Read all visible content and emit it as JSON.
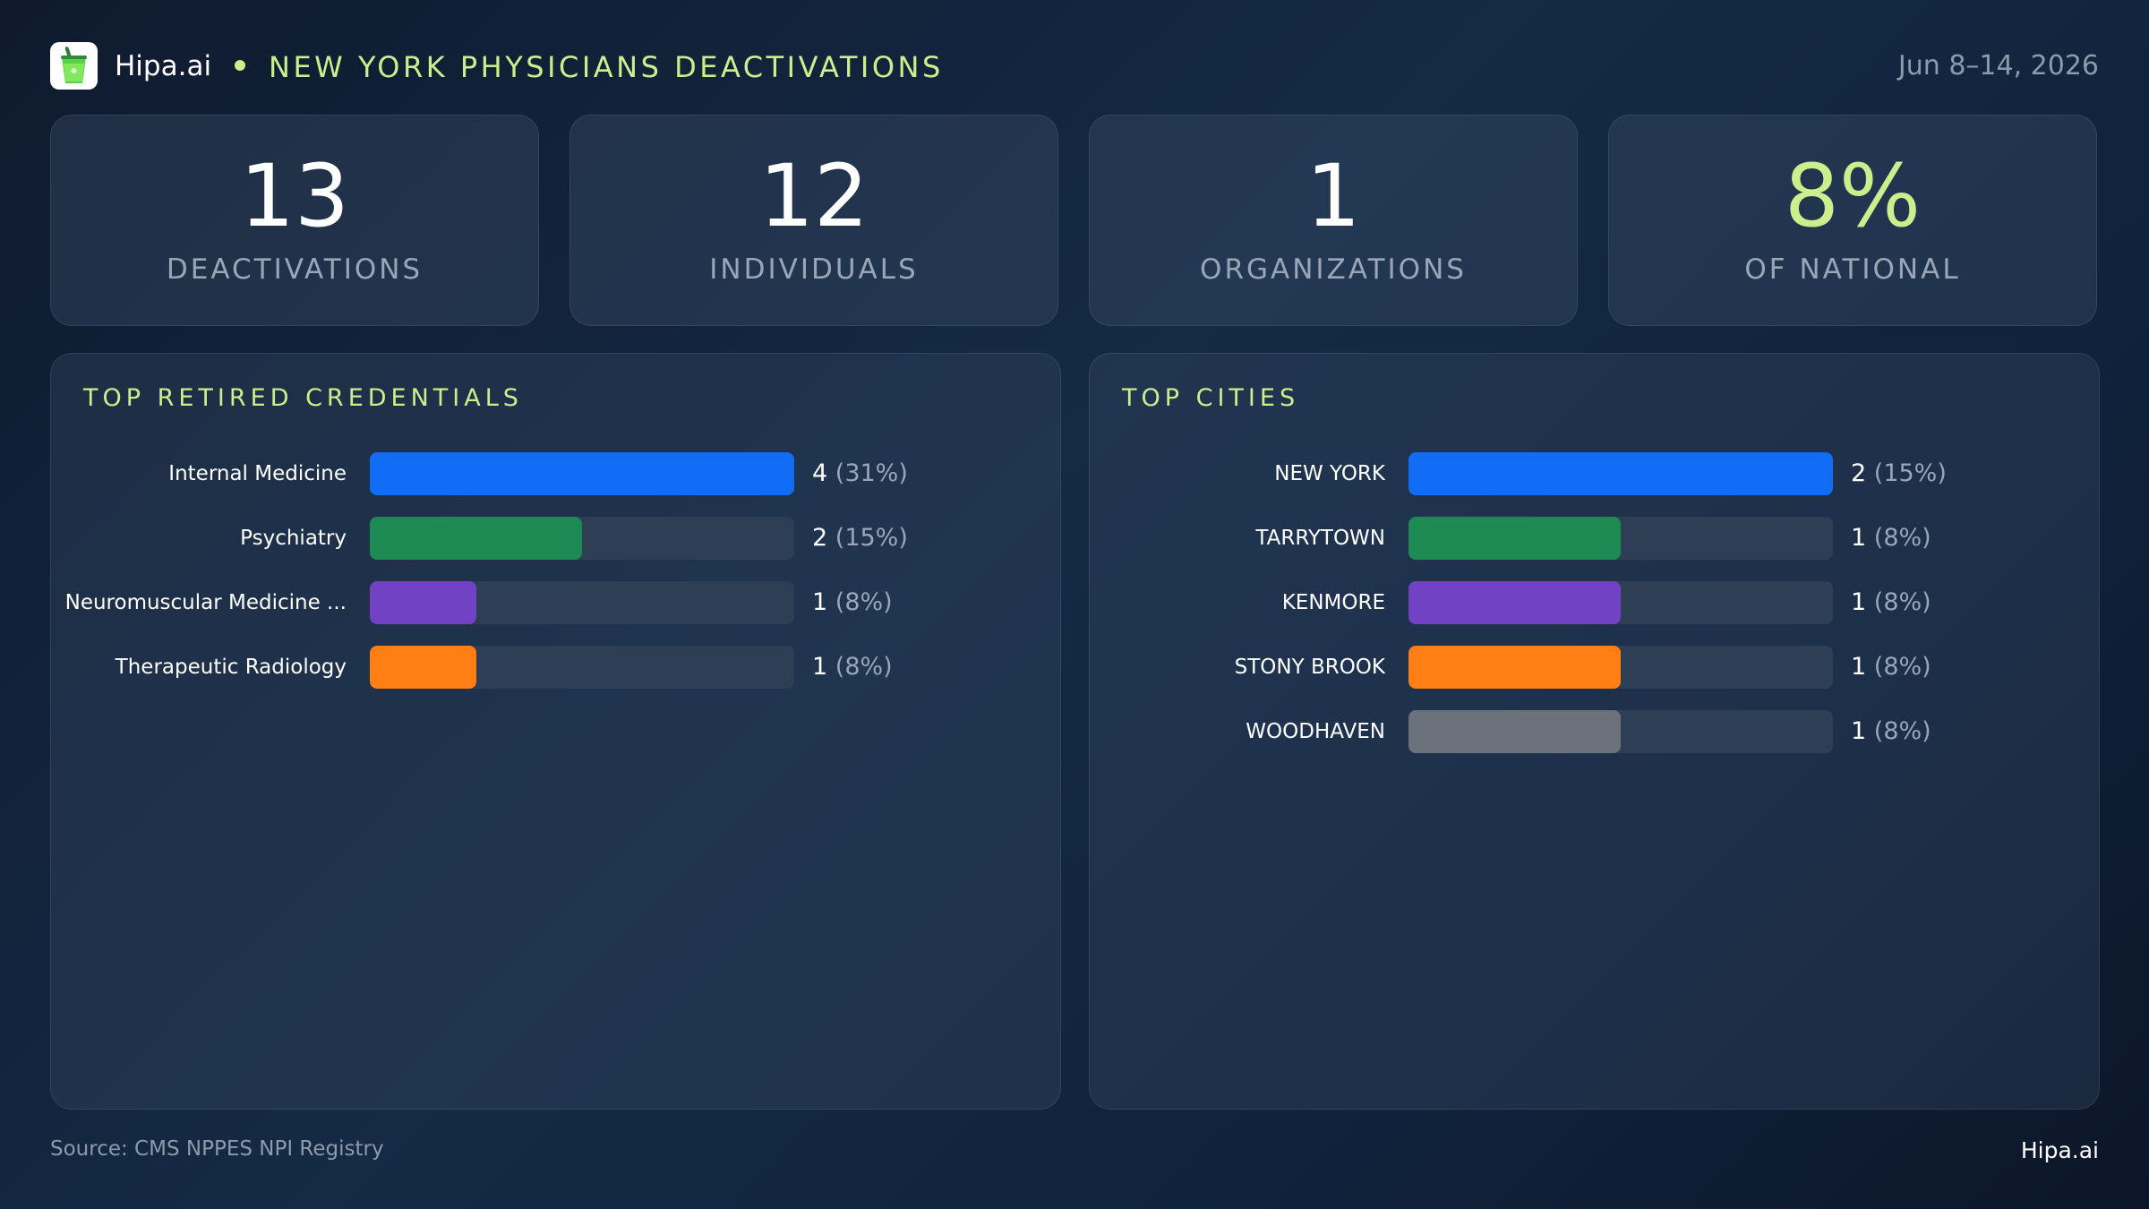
{
  "header": {
    "brand": "Hipa.ai",
    "title": "NEW YORK PHYSICIANS DEACTIVATIONS",
    "date_range": "Jun 8–14, 2026",
    "logo_icon": "drink-cup-icon"
  },
  "kpis": [
    {
      "value": "13",
      "label": "DEACTIVATIONS",
      "accent": false
    },
    {
      "value": "12",
      "label": "INDIVIDUALS",
      "accent": false
    },
    {
      "value": "1",
      "label": "ORGANIZATIONS",
      "accent": false
    },
    {
      "value": "8%",
      "label": "OF NATIONAL",
      "accent": true
    }
  ],
  "colors": {
    "accent": "#cdee8d",
    "track": "#2d3e55",
    "blue": "#116df6",
    "green": "#1e8a53",
    "purple": "#7143c4",
    "orange": "#ff7f14",
    "gray": "#6b727c"
  },
  "chart_data": [
    {
      "type": "bar",
      "orientation": "horizontal",
      "title": "TOP RETIRED CREDENTIALS",
      "categories": [
        "Internal Medicine",
        "Psychiatry",
        "Neuromuscular Medicine ...",
        "Therapeutic Radiology"
      ],
      "values": [
        4,
        2,
        1,
        1
      ],
      "value_labels": [
        "4",
        "2",
        "1",
        "1"
      ],
      "percent_labels": [
        "(31%)",
        "(15%)",
        "(8%)",
        "(8%)"
      ],
      "bar_colors": [
        "#116df6",
        "#1e8a53",
        "#7143c4",
        "#ff7f14"
      ],
      "xlim": [
        0,
        4
      ]
    },
    {
      "type": "bar",
      "orientation": "horizontal",
      "title": "TOP CITIES",
      "categories": [
        "NEW YORK",
        "TARRYTOWN",
        "KENMORE",
        "STONY BROOK",
        "WOODHAVEN"
      ],
      "values": [
        2,
        1,
        1,
        1,
        1
      ],
      "value_labels": [
        "2",
        "1",
        "1",
        "1",
        "1"
      ],
      "percent_labels": [
        "(15%)",
        "(8%)",
        "(8%)",
        "(8%)",
        "(8%)"
      ],
      "bar_colors": [
        "#116df6",
        "#1e8a53",
        "#7143c4",
        "#ff7f14",
        "#6b727c"
      ],
      "xlim": [
        0,
        2
      ]
    }
  ],
  "footer": {
    "source": "Source: CMS NPPES NPI Registry",
    "brand": "Hipa.ai"
  }
}
